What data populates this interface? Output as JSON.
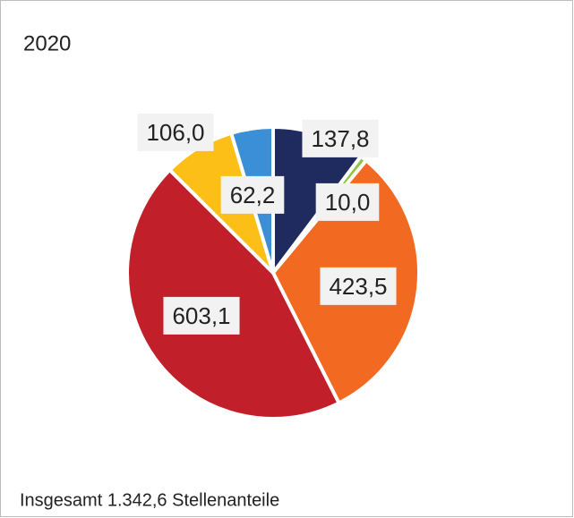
{
  "chart_data": {
    "type": "pie",
    "title": "2020",
    "values": [
      137.8,
      10.0,
      423.5,
      603.1,
      106.0,
      62.2
    ],
    "value_labels": [
      "137,8",
      "10,0",
      "423,5",
      "603,1",
      "106,0",
      "62,2"
    ],
    "colors": [
      "#1f2a5e",
      "#8dc63f",
      "#f26a21",
      "#c1202a",
      "#fbbf17",
      "#3a8fd6"
    ],
    "annotation": "Insgesamt 1.342,6 Stellenanteile"
  }
}
